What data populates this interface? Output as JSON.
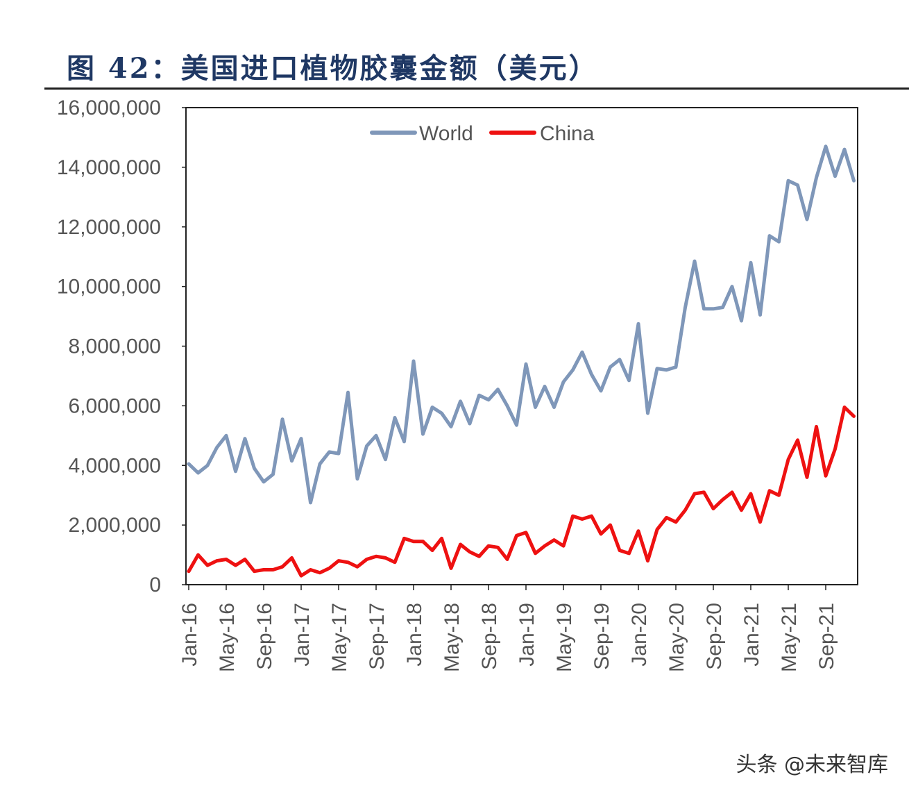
{
  "title": "图 42：美国进口植物胶囊金额（美元）",
  "watermark": "头条 @未来智库",
  "chart_data": {
    "type": "line",
    "title": "图 42：美国进口植物胶囊金额（美元）",
    "xlabel": "",
    "ylabel": "",
    "ylim": [
      0,
      16000000
    ],
    "yticks": [
      0,
      2000000,
      4000000,
      6000000,
      8000000,
      10000000,
      12000000,
      14000000,
      16000000
    ],
    "ytick_labels": [
      "0",
      "2,000,000",
      "4,000,000",
      "6,000,000",
      "8,000,000",
      "10,000,000",
      "12,000,000",
      "14,000,000",
      "16,000,000"
    ],
    "x": [
      "Jan-16",
      "Feb-16",
      "Mar-16",
      "Apr-16",
      "May-16",
      "Jun-16",
      "Jul-16",
      "Aug-16",
      "Sep-16",
      "Oct-16",
      "Nov-16",
      "Dec-16",
      "Jan-17",
      "Feb-17",
      "Mar-17",
      "Apr-17",
      "May-17",
      "Jun-17",
      "Jul-17",
      "Aug-17",
      "Sep-17",
      "Oct-17",
      "Nov-17",
      "Dec-17",
      "Jan-18",
      "Feb-18",
      "Mar-18",
      "Apr-18",
      "May-18",
      "Jun-18",
      "Jul-18",
      "Aug-18",
      "Sep-18",
      "Oct-18",
      "Nov-18",
      "Dec-18",
      "Jan-19",
      "Feb-19",
      "Mar-19",
      "Apr-19",
      "May-19",
      "Jun-19",
      "Jul-19",
      "Aug-19",
      "Sep-19",
      "Oct-19",
      "Nov-19",
      "Dec-19",
      "Jan-20",
      "Feb-20",
      "Mar-20",
      "Apr-20",
      "May-20",
      "Jun-20",
      "Jul-20",
      "Aug-20",
      "Sep-20",
      "Oct-20",
      "Nov-20",
      "Dec-20",
      "Jan-21",
      "Feb-21",
      "Mar-21",
      "Apr-21",
      "May-21",
      "Jun-21",
      "Jul-21",
      "Aug-21",
      "Sep-21",
      "Oct-21",
      "Nov-21",
      "Dec-21"
    ],
    "xtick_labels": [
      "Jan-16",
      "May-16",
      "Sep-16",
      "Jan-17",
      "May-17",
      "Sep-17",
      "Jan-18",
      "May-18",
      "Sep-18",
      "Jan-19",
      "May-19",
      "Sep-19",
      "Jan-20",
      "May-20",
      "Sep-20",
      "Jan-21",
      "May-21",
      "Sep-21"
    ],
    "legend_position": "top-center",
    "grid": false,
    "series": [
      {
        "name": "World",
        "color": "#7f97b9",
        "values": [
          4050000,
          3750000,
          4000000,
          4600000,
          5000000,
          3800000,
          4900000,
          3900000,
          3450000,
          3700000,
          5550000,
          4150000,
          4900000,
          2750000,
          4050000,
          4450000,
          4400000,
          6450000,
          3550000,
          4650000,
          5000000,
          4200000,
          5600000,
          4800000,
          7500000,
          5050000,
          5950000,
          5750000,
          5300000,
          6150000,
          5400000,
          6350000,
          6200000,
          6550000,
          6000000,
          5350000,
          7400000,
          5950000,
          6650000,
          5950000,
          6800000,
          7200000,
          7800000,
          7050000,
          6500000,
          7300000,
          7550000,
          6850000,
          8750000,
          5750000,
          7250000,
          7200000,
          7300000,
          9300000,
          10850000,
          9250000,
          9250000,
          9300000,
          10000000,
          8850000,
          10800000,
          9050000,
          11700000,
          11500000,
          13550000,
          13400000,
          12250000,
          13650000,
          14700000,
          13700000,
          14600000,
          13550000
        ]
      },
      {
        "name": "China",
        "color": "#ee1111",
        "values": [
          450000,
          1000000,
          650000,
          800000,
          850000,
          650000,
          850000,
          450000,
          500000,
          500000,
          600000,
          900000,
          300000,
          500000,
          400000,
          550000,
          800000,
          750000,
          600000,
          850000,
          950000,
          900000,
          750000,
          1550000,
          1450000,
          1450000,
          1150000,
          1550000,
          550000,
          1350000,
          1100000,
          950000,
          1300000,
          1250000,
          850000,
          1650000,
          1750000,
          1050000,
          1300000,
          1500000,
          1300000,
          2300000,
          2200000,
          2300000,
          1700000,
          2000000,
          1150000,
          1050000,
          1800000,
          800000,
          1850000,
          2250000,
          2100000,
          2500000,
          3050000,
          3100000,
          2550000,
          2850000,
          3100000,
          2500000,
          3050000,
          2100000,
          3150000,
          3000000,
          4200000,
          4850000,
          3600000,
          5300000,
          3650000,
          4550000,
          5950000,
          5650000
        ]
      }
    ]
  }
}
